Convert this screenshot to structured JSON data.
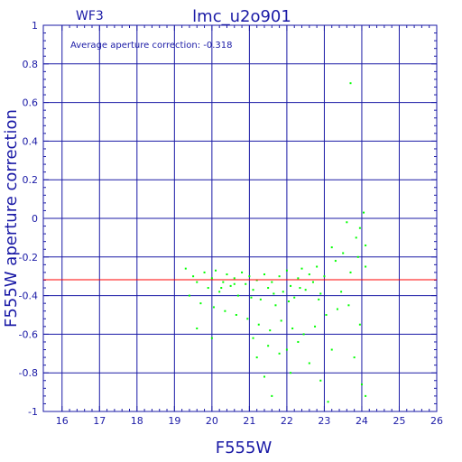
{
  "header": {
    "left": "WF3",
    "title": "lmc_u2o901"
  },
  "annotation": "Average aperture correction: -0.318",
  "chart_data": {
    "type": "scatter",
    "xlabel": "F555W",
    "ylabel": "F555W aperture correction",
    "xlim": [
      15.5,
      26
    ],
    "ylim": [
      -1,
      1
    ],
    "x_ticks": [
      "16",
      "17",
      "18",
      "19",
      "20",
      "21",
      "22",
      "23",
      "24",
      "25",
      "26"
    ],
    "y_ticks": [
      "1",
      "0.8",
      "0.6",
      "0.4",
      "0.2",
      "0",
      "-0.2",
      "-0.4",
      "-0.6",
      "-0.8",
      "-1"
    ],
    "grid": true,
    "reference_line": {
      "y": -0.318,
      "color": "#ff0000"
    },
    "series": [
      {
        "color": "#00ff00",
        "points": [
          [
            23.7,
            0.7
          ],
          [
            24.05,
            0.03
          ],
          [
            23.95,
            -0.05
          ],
          [
            23.85,
            -0.1
          ],
          [
            24.1,
            -0.14
          ],
          [
            23.6,
            -0.02
          ],
          [
            23.2,
            -0.15
          ],
          [
            23.5,
            -0.18
          ],
          [
            23.9,
            -0.2
          ],
          [
            24.1,
            -0.25
          ],
          [
            23.3,
            -0.22
          ],
          [
            23.7,
            -0.28
          ],
          [
            19.3,
            -0.26
          ],
          [
            19.5,
            -0.3
          ],
          [
            19.6,
            -0.33
          ],
          [
            19.8,
            -0.28
          ],
          [
            19.9,
            -0.36
          ],
          [
            20.0,
            -0.31
          ],
          [
            20.1,
            -0.27
          ],
          [
            20.2,
            -0.38
          ],
          [
            20.3,
            -0.33
          ],
          [
            20.4,
            -0.29
          ],
          [
            20.5,
            -0.35
          ],
          [
            20.6,
            -0.31
          ],
          [
            20.7,
            -0.4
          ],
          [
            20.8,
            -0.28
          ],
          [
            20.9,
            -0.34
          ],
          [
            21.0,
            -0.3
          ],
          [
            21.1,
            -0.37
          ],
          [
            21.2,
            -0.32
          ],
          [
            21.3,
            -0.42
          ],
          [
            21.4,
            -0.29
          ],
          [
            21.5,
            -0.36
          ],
          [
            21.6,
            -0.33
          ],
          [
            21.7,
            -0.45
          ],
          [
            21.8,
            -0.3
          ],
          [
            21.9,
            -0.38
          ],
          [
            22.0,
            -0.27
          ],
          [
            22.1,
            -0.35
          ],
          [
            22.2,
            -0.41
          ],
          [
            22.3,
            -0.31
          ],
          [
            22.4,
            -0.26
          ],
          [
            22.5,
            -0.37
          ],
          [
            22.6,
            -0.29
          ],
          [
            22.7,
            -0.33
          ],
          [
            22.8,
            -0.25
          ],
          [
            22.9,
            -0.39
          ],
          [
            23.0,
            -0.3
          ],
          [
            19.4,
            -0.4
          ],
          [
            19.7,
            -0.44
          ],
          [
            20.05,
            -0.46
          ],
          [
            20.35,
            -0.48
          ],
          [
            20.65,
            -0.5
          ],
          [
            20.95,
            -0.52
          ],
          [
            21.25,
            -0.55
          ],
          [
            21.55,
            -0.58
          ],
          [
            21.85,
            -0.53
          ],
          [
            22.15,
            -0.57
          ],
          [
            22.45,
            -0.6
          ],
          [
            22.75,
            -0.56
          ],
          [
            23.05,
            -0.5
          ],
          [
            23.35,
            -0.47
          ],
          [
            23.65,
            -0.45
          ],
          [
            23.95,
            -0.55
          ],
          [
            19.6,
            -0.57
          ],
          [
            20.0,
            -0.62
          ],
          [
            21.1,
            -0.62
          ],
          [
            21.5,
            -0.66
          ],
          [
            22.0,
            -0.68
          ],
          [
            22.3,
            -0.64
          ],
          [
            21.2,
            -0.72
          ],
          [
            21.8,
            -0.7
          ],
          [
            22.6,
            -0.75
          ],
          [
            23.2,
            -0.68
          ],
          [
            23.8,
            -0.72
          ],
          [
            22.1,
            -0.8
          ],
          [
            22.9,
            -0.84
          ],
          [
            21.6,
            -0.92
          ],
          [
            23.1,
            -0.95
          ],
          [
            24.0,
            -0.86
          ],
          [
            24.1,
            -0.92
          ],
          [
            21.4,
            -0.82
          ],
          [
            20.6,
            -0.34
          ],
          [
            20.25,
            -0.36
          ],
          [
            21.05,
            -0.41
          ],
          [
            21.65,
            -0.39
          ],
          [
            22.05,
            -0.43
          ],
          [
            22.35,
            -0.36
          ],
          [
            22.85,
            -0.42
          ],
          [
            23.45,
            -0.38
          ]
        ]
      }
    ]
  }
}
